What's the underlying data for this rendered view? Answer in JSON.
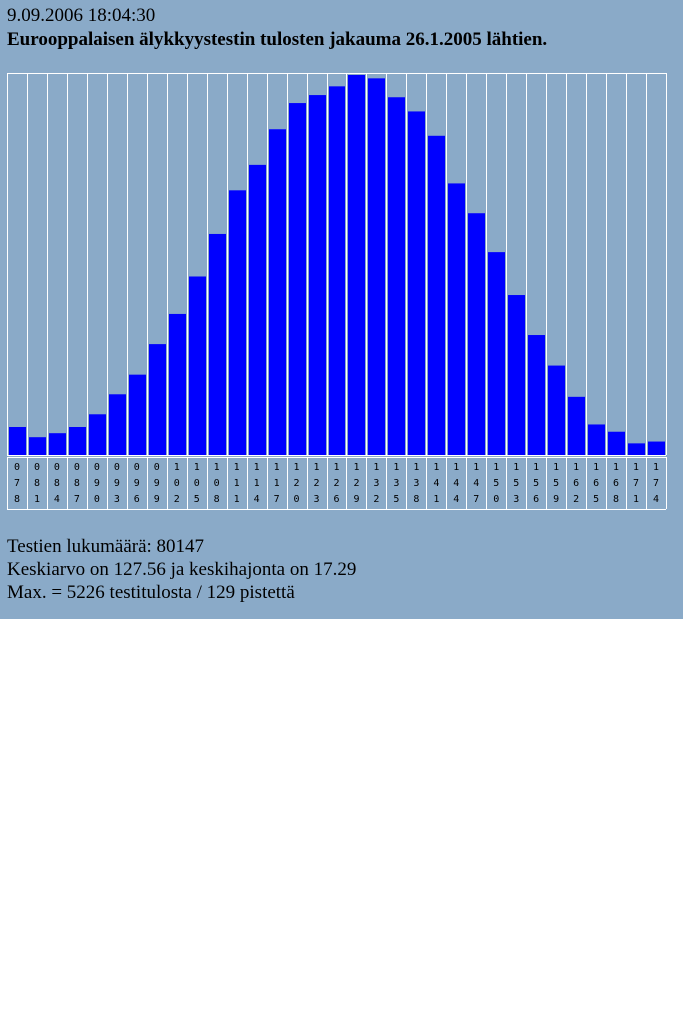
{
  "header": {
    "timestamp": "9.09.2006 18:04:30",
    "title": "Eurooppalaisen älykkyystestin tulosten jakauma 26.1.2005 lähtien."
  },
  "stats": {
    "count_line": "Testien lukumäärä: 80147",
    "mean_line": "Keskiarvo on 127.56 ja keskihajonta on 17.29",
    "max_line": "Max. = 5226 testitulosta / 129 pistettä"
  },
  "colors": {
    "panel_background": "#8aaac8",
    "bar_fill": "#0000ff",
    "grid_line": "#ffffff"
  },
  "chart_data": {
    "type": "bar",
    "categories": [
      "078",
      "081",
      "084",
      "087",
      "090",
      "093",
      "096",
      "099",
      "102",
      "105",
      "108",
      "111",
      "114",
      "117",
      "120",
      "123",
      "126",
      "129",
      "132",
      "135",
      "138",
      "141",
      "144",
      "147",
      "150",
      "153",
      "156",
      "159",
      "162",
      "165",
      "168",
      "171",
      "174"
    ],
    "values": [
      385,
      245,
      300,
      385,
      560,
      835,
      1105,
      1525,
      1940,
      2455,
      3040,
      3640,
      3990,
      4480,
      4840,
      4950,
      5070,
      5226,
      5180,
      4920,
      4725,
      4390,
      3735,
      3325,
      2790,
      2200,
      1650,
      1230,
      800,
      420,
      320,
      160,
      185
    ],
    "title": "Eurooppalaisen älykkyystestin tulosten jakauma 26.1.2005 lähtien.",
    "xlabel": "",
    "ylabel": "",
    "ylim": [
      0,
      5226
    ],
    "grid": true,
    "legend": "none"
  }
}
